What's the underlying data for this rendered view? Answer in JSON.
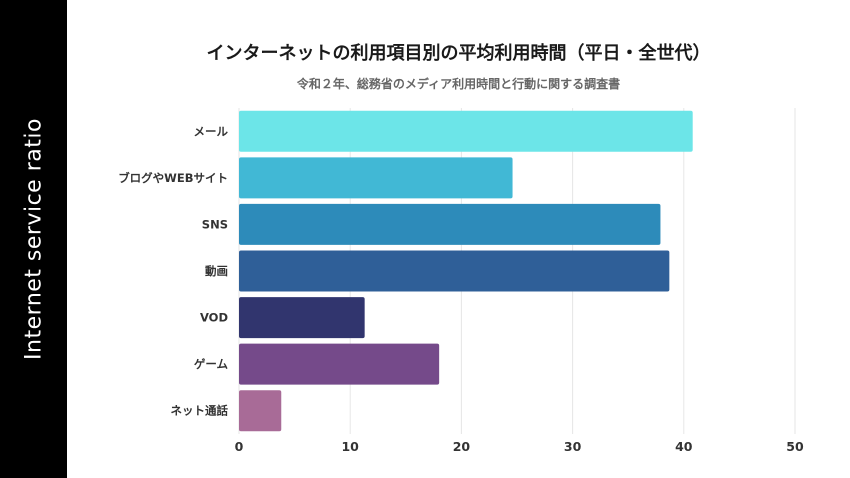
{
  "side_label": "Internet service ratio",
  "chart_data": {
    "type": "bar",
    "orientation": "horizontal",
    "title": "インターネットの利用項目別の平均利用時間（平日・全世代）",
    "subtitle": "令和２年、総務省のメディア利用時間と行動に関する調査書",
    "categories": [
      "メール",
      "ブログやWEBサイト",
      "SNS",
      "動画",
      "VOD",
      "ゲーム",
      "ネット通話"
    ],
    "values": [
      40.8,
      24.6,
      37.9,
      38.7,
      11.3,
      18.0,
      3.8
    ],
    "colors": [
      "#6ce5e8",
      "#41b8d5",
      "#2d8bba",
      "#2f5f98",
      "#31356e",
      "#754a8a",
      "#a86b97"
    ],
    "xlim": [
      0,
      50
    ],
    "xticks": [
      0,
      10,
      20,
      30,
      40,
      50
    ],
    "grid": true,
    "xlabel": "",
    "ylabel": ""
  }
}
